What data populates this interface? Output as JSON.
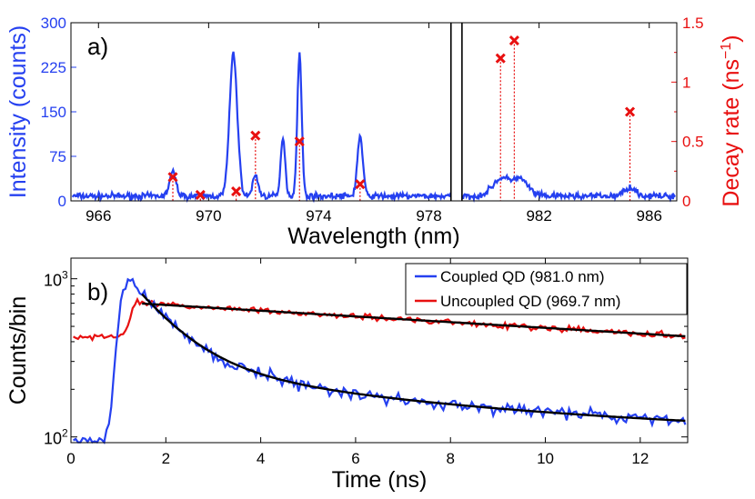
{
  "chart_data": [
    {
      "panel": "a)",
      "type": "line",
      "xlabel": "Wavelength (nm)",
      "ylabel_left": "Intensity (counts)",
      "ylabel_right_text": "Decay rate (ns",
      "ylabel_right_sup": "−1",
      "ylabel_right_close": ")",
      "xlim": [
        965,
        987
      ],
      "xticks": [
        966,
        970,
        974,
        978,
        982,
        986
      ],
      "ylim_left": [
        0,
        300
      ],
      "yticks_left": [
        0,
        75,
        150,
        225,
        300
      ],
      "ylim_right": [
        0,
        1.5
      ],
      "yticks_right": [
        0,
        0.5,
        1,
        1.5
      ],
      "axis_break_nm": [
        978.8,
        979.2
      ],
      "colors": {
        "spectrum": "#2540f0",
        "decay": "#e81010",
        "axis_left": "#2540f0",
        "axis_right": "#e81010"
      },
      "spectrum": {
        "name": "Intensity",
        "baseline": 8,
        "peaks": [
          {
            "center": 968.7,
            "height": 40,
            "width": 0.12
          },
          {
            "center": 970.9,
            "height": 240,
            "width": 0.14
          },
          {
            "center": 971.7,
            "height": 35,
            "width": 0.1
          },
          {
            "center": 972.7,
            "height": 100,
            "width": 0.08
          },
          {
            "center": 973.3,
            "height": 238,
            "width": 0.08
          },
          {
            "center": 975.5,
            "height": 100,
            "width": 0.1
          },
          {
            "center": 980.6,
            "height": 28,
            "width": 0.3
          },
          {
            "center": 981.3,
            "height": 28,
            "width": 0.3
          },
          {
            "center": 985.3,
            "height": 15,
            "width": 0.2
          }
        ]
      },
      "decay_rates": {
        "name": "Decay rate",
        "points": [
          {
            "x": 968.7,
            "y": 0.2
          },
          {
            "x": 969.7,
            "y": 0.05
          },
          {
            "x": 971.0,
            "y": 0.08
          },
          {
            "x": 971.7,
            "y": 0.55
          },
          {
            "x": 973.3,
            "y": 0.5
          },
          {
            "x": 975.5,
            "y": 0.14
          },
          {
            "x": 980.6,
            "y": 1.2
          },
          {
            "x": 981.1,
            "y": 1.35
          },
          {
            "x": 985.3,
            "y": 0.75
          }
        ]
      }
    },
    {
      "panel": "b)",
      "type": "line",
      "yscale": "log",
      "xlabel": "Time (ns)",
      "ylabel": "Counts/bin",
      "xlim": [
        0,
        13
      ],
      "xticks": [
        0,
        2,
        4,
        6,
        8,
        10,
        12
      ],
      "ylim": [
        92,
        1350
      ],
      "yticks": [
        {
          "value": 100,
          "base": "10",
          "exp": "2"
        },
        {
          "value": 1000,
          "base": "10",
          "exp": "3"
        }
      ],
      "legend_position": "top-right",
      "series": [
        {
          "name": "Coupled QD (981.0 nm)",
          "color": "#2540f0",
          "model": {
            "pre_level": 95,
            "rise_center": 1.0,
            "peak_time": 1.3,
            "peak": 1000,
            "fast_amp": 650,
            "fast_tau": 0.9,
            "slow_amp": 185,
            "slow_tau": 6.0,
            "offset": 100
          }
        },
        {
          "name": "Uncoupled QD (969.7 nm)",
          "color": "#e81010",
          "model": {
            "pre_level": 430,
            "rise_center": 1.25,
            "peak_time": 1.4,
            "amp": 700,
            "tau": 24
          }
        }
      ],
      "fits": [
        {
          "name": "Coupled fit",
          "color": "#000000",
          "t_start": 1.5,
          "t_end": 13
        },
        {
          "name": "Uncoupled fit",
          "color": "#000000",
          "t_start": 1.5,
          "t_end": 13
        }
      ]
    }
  ]
}
